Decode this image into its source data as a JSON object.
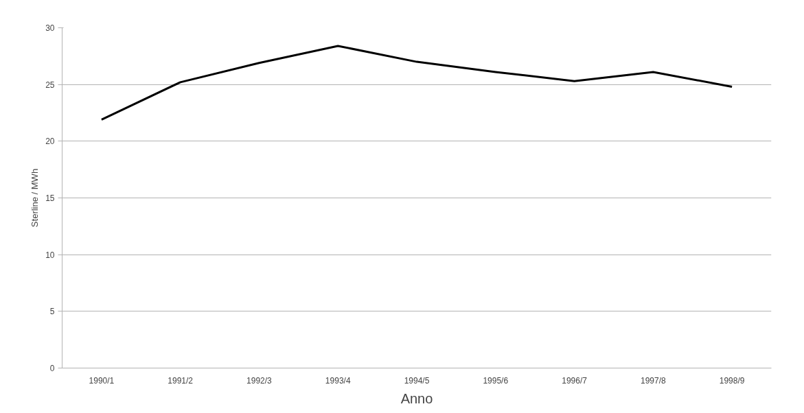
{
  "chart_data": {
    "type": "line",
    "xlabel": "Anno",
    "ylabel": "Sterline / MWh",
    "categories": [
      "1990/1",
      "1991/2",
      "1992/3",
      "1993/4",
      "1994/5",
      "1995/6",
      "1996/7",
      "1997/8",
      "1998/9"
    ],
    "series": [
      {
        "color": "#000000",
        "values": [
          21.9,
          25.2,
          26.9,
          28.4,
          27.0,
          26.1,
          25.3,
          26.1,
          24.8
        ]
      }
    ],
    "ylim": [
      0,
      30
    ],
    "yticks": [
      0,
      5,
      10,
      15,
      20,
      25,
      30
    ],
    "grid": "y",
    "marker": "none",
    "line_style": "solid"
  }
}
